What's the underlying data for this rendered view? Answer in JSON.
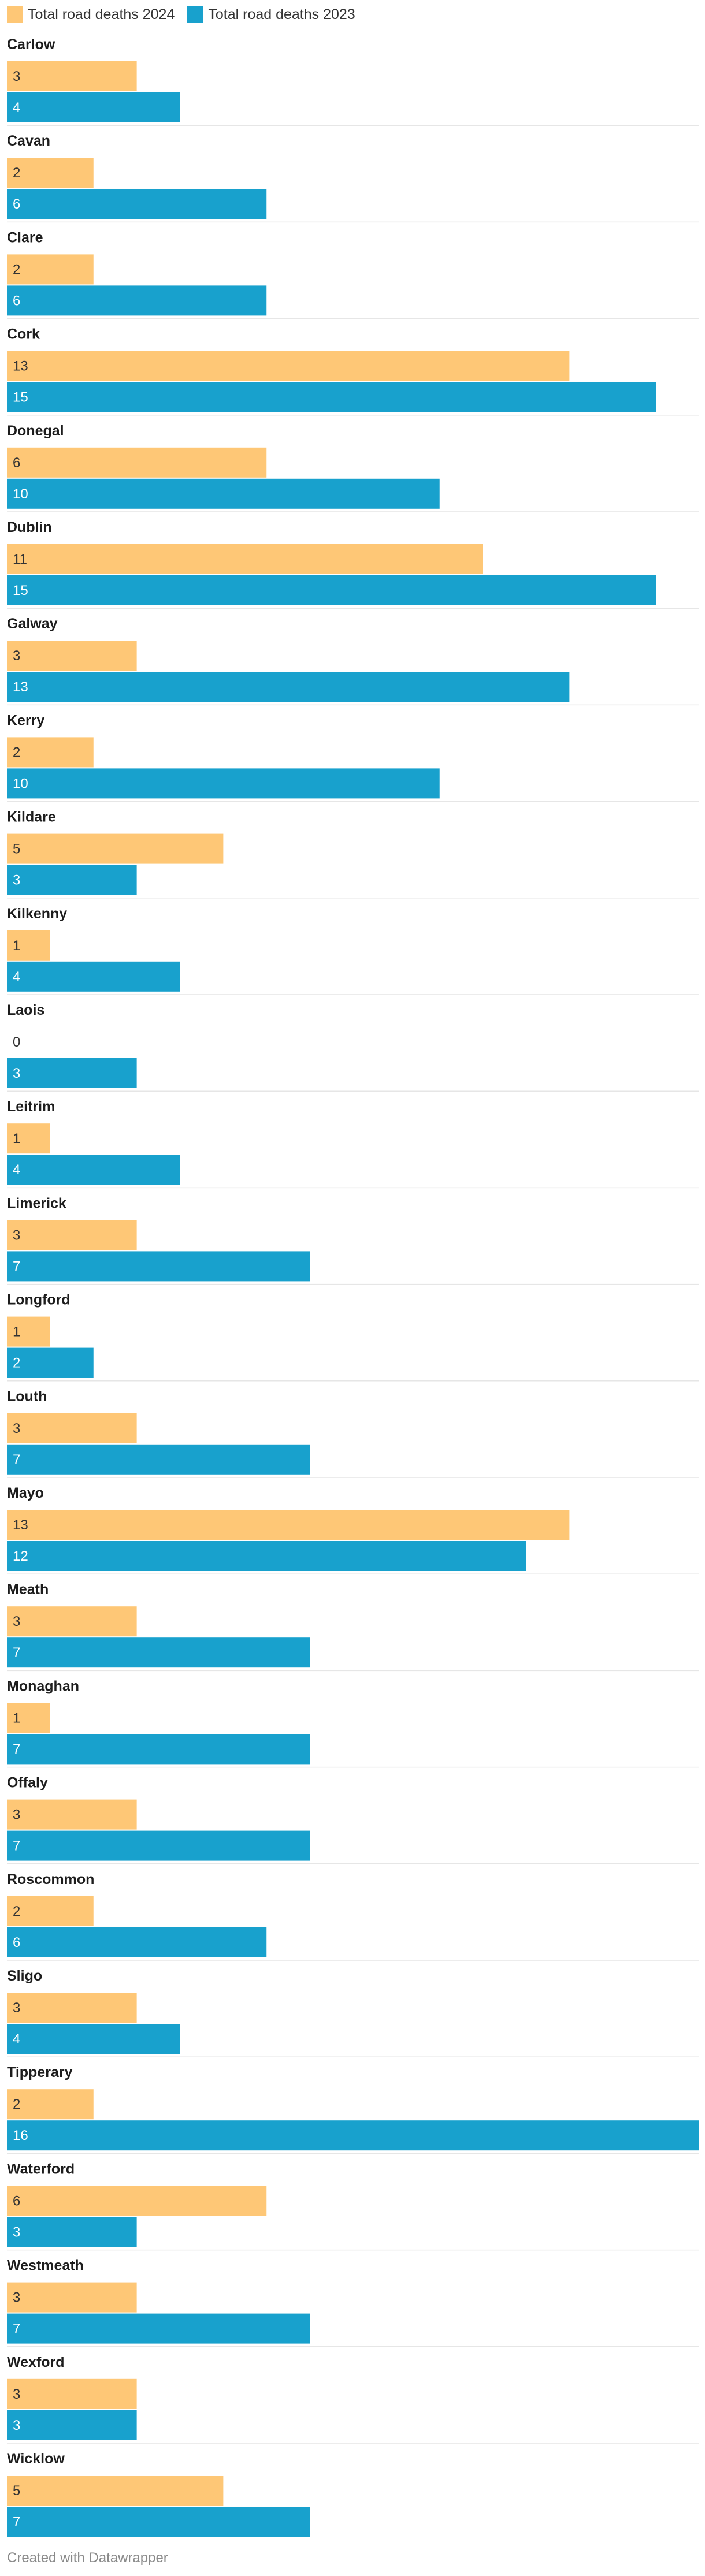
{
  "legend": [
    {
      "label": "Total road deaths 2024",
      "color": "#fec776"
    },
    {
      "label": "Total road deaths 2023",
      "color": "#18a1cd"
    }
  ],
  "chart_data": {
    "type": "bar",
    "orientation": "horizontal",
    "grouping": "grouped",
    "categories": [
      "Carlow",
      "Cavan",
      "Clare",
      "Cork",
      "Donegal",
      "Dublin",
      "Galway",
      "Kerry",
      "Kildare",
      "Kilkenny",
      "Laois",
      "Leitrim",
      "Limerick",
      "Longford",
      "Louth",
      "Mayo",
      "Meath",
      "Monaghan",
      "Offaly",
      "Roscommon",
      "Sligo",
      "Tipperary",
      "Waterford",
      "Westmeath",
      "Wexford",
      "Wicklow"
    ],
    "series": [
      {
        "name": "Total road deaths 2024",
        "color": "#fec776",
        "values": [
          3,
          2,
          2,
          13,
          6,
          11,
          3,
          2,
          5,
          1,
          0,
          1,
          3,
          1,
          3,
          13,
          3,
          1,
          3,
          2,
          3,
          2,
          6,
          3,
          3,
          5
        ]
      },
      {
        "name": "Total road deaths 2023",
        "color": "#18a1cd",
        "values": [
          4,
          6,
          6,
          15,
          10,
          15,
          13,
          10,
          3,
          4,
          3,
          4,
          7,
          2,
          7,
          12,
          7,
          7,
          7,
          6,
          4,
          16,
          3,
          7,
          3,
          7
        ]
      }
    ],
    "xlim": [
      0,
      16
    ],
    "grid": false,
    "legend_position": "top-left"
  },
  "footer": {
    "credit": "Created with Datawrapper"
  }
}
